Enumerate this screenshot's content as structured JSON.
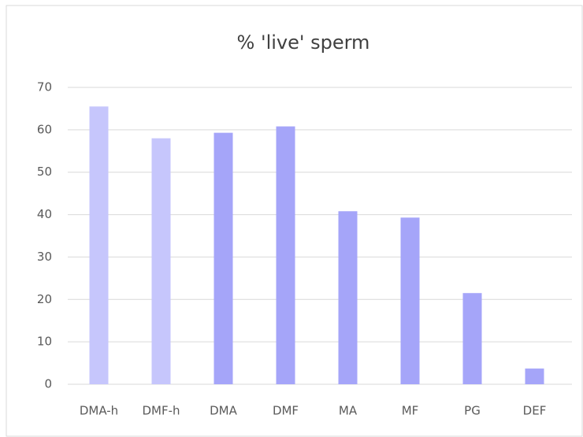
{
  "chart_data": {
    "type": "bar",
    "title": "% 'live' sperm",
    "categories": [
      "DMA-h",
      "DMF-h",
      "DMA",
      "DMF",
      "MA",
      "MF",
      "PG",
      "DEF"
    ],
    "values": [
      65.5,
      58,
      59.3,
      60.8,
      40.8,
      39.3,
      21.5,
      3.7
    ],
    "colors": [
      "#c6c6fc",
      "#c6c6fc",
      "#a5a5f9",
      "#a5a5f9",
      "#a5a5f9",
      "#a5a5f9",
      "#a5a5f9",
      "#a5a5f9"
    ],
    "ylim": [
      0,
      70
    ],
    "yticks": [
      0,
      10,
      20,
      30,
      40,
      50,
      60,
      70
    ],
    "grid": true
  }
}
